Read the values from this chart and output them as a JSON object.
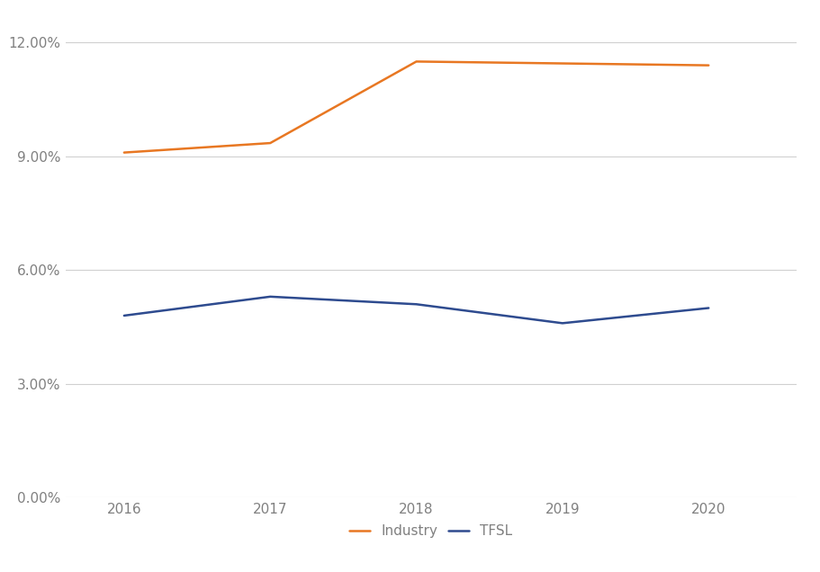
{
  "years": [
    2016,
    2017,
    2018,
    2019,
    2020
  ],
  "industry": [
    0.091,
    0.0935,
    0.115,
    0.1145,
    0.114
  ],
  "tfsl": [
    0.048,
    0.053,
    0.051,
    0.046,
    0.05
  ],
  "industry_color": "#E87722",
  "tfsl_color": "#2E4B8F",
  "industry_label": "Industry",
  "tfsl_label": "TFSL",
  "ylim_min": 0.0,
  "ylim_max": 0.1267,
  "yticks": [
    0.0,
    0.03,
    0.06,
    0.09,
    0.12
  ],
  "ytick_labels": [
    "0.00%",
    "3.00%",
    "6.00%",
    "9.00%",
    "12.00%"
  ],
  "background_color": "#FFFFFF",
  "grid_color": "#D0D0D0",
  "line_width": 1.8,
  "tick_color": "#808080",
  "tick_fontsize": 11
}
